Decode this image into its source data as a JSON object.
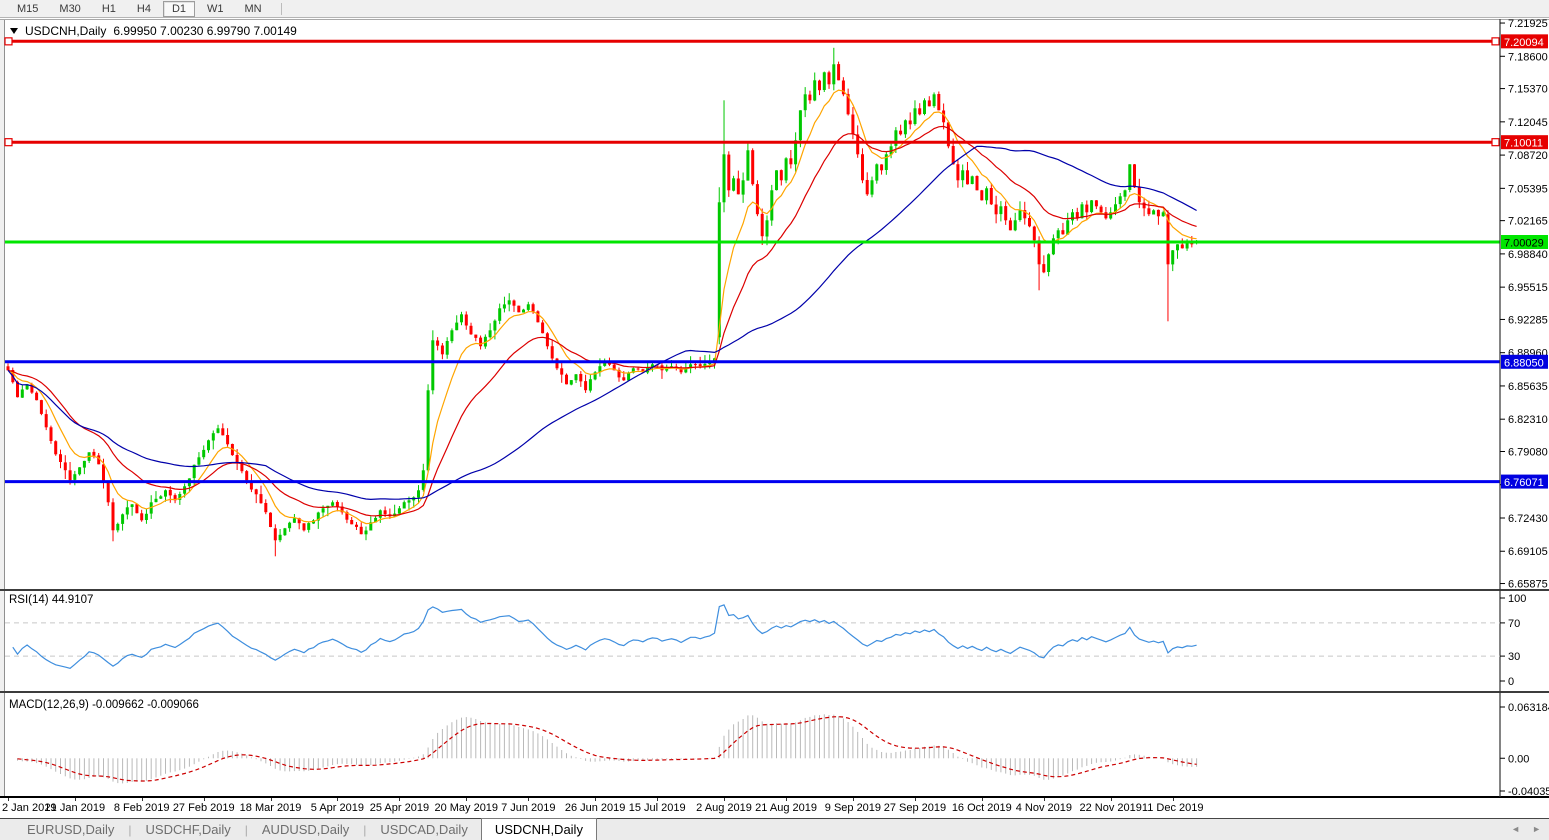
{
  "toolbar": {
    "timeframes": [
      {
        "label": "M15",
        "active": false
      },
      {
        "label": "M30",
        "active": false
      },
      {
        "label": "H1",
        "active": false
      },
      {
        "label": "H4",
        "active": false
      },
      {
        "label": "D1",
        "active": true
      },
      {
        "label": "W1",
        "active": false
      },
      {
        "label": "MN",
        "active": false
      }
    ]
  },
  "chart": {
    "title_symbol": "USDCNH,Daily",
    "title_ohlc": "6.99950 7.00230 6.99790 7.00149",
    "colors": {
      "bull": "#00C800",
      "bear": "#FF0000",
      "ma_fast": "#FFA500",
      "ma_mid": "#DC0000",
      "ma_slow": "#0000AA",
      "rsi_line": "#3E8EDE",
      "rsi_level": "#c8c8c8",
      "macd_hist": "#b9b9b9",
      "macd_signal": "#CC0000",
      "level_red": "#E60000",
      "level_green": "#00E600",
      "level_blue": "#0000F0",
      "border": "#3c3c3c",
      "axis_text": "#000000"
    },
    "price_axis_ticks": [
      "7.21925",
      "7.18600",
      "7.15370",
      "7.12045",
      "7.08720",
      "7.05395",
      "7.02165",
      "6.98840",
      "6.95515",
      "6.92285",
      "6.88960",
      "6.85635",
      "6.82310",
      "6.79080",
      "6.75755",
      "6.72430",
      "6.69105",
      "6.65875"
    ],
    "price_badges": [
      {
        "text": "7.20094",
        "price": 7.20094,
        "bg": "#E60000",
        "fg": "#FFFFFF"
      },
      {
        "text": "7.10011",
        "price": 7.10011,
        "bg": "#E60000",
        "fg": "#FFFFFF"
      },
      {
        "text": "7.00029",
        "price": 7.00029,
        "bg": "#00E600",
        "fg": "#000000"
      },
      {
        "text": "6.88050",
        "price": 6.8805,
        "bg": "#0000E0",
        "fg": "#FFFFFF"
      },
      {
        "text": "6.76071",
        "price": 6.76071,
        "bg": "#0000E0",
        "fg": "#FFFFFF"
      }
    ],
    "date_ticks": [
      {
        "label": "2 Jan 2019",
        "day": 0
      },
      {
        "label": "21 Jan 2019",
        "day": 14
      },
      {
        "label": "8 Feb 2019",
        "day": 28
      },
      {
        "label": "27 Feb 2019",
        "day": 41
      },
      {
        "label": "18 Mar 2019",
        "day": 55
      },
      {
        "label": "5 Apr 2019",
        "day": 69
      },
      {
        "label": "25 Apr 2019",
        "day": 82
      },
      {
        "label": "20 May 2019",
        "day": 96
      },
      {
        "label": "7 Jun 2019",
        "day": 109
      },
      {
        "label": "26 Jun 2019",
        "day": 123
      },
      {
        "label": "15 Jul 2019",
        "day": 136
      },
      {
        "label": "2 Aug 2019",
        "day": 150
      },
      {
        "label": "21 Aug 2019",
        "day": 163
      },
      {
        "label": "9 Sep 2019",
        "day": 177
      },
      {
        "label": "27 Sep 2019",
        "day": 190
      },
      {
        "label": "16 Oct 2019",
        "day": 204
      },
      {
        "label": "4 Nov 2019",
        "day": 217
      },
      {
        "label": "22 Nov 2019",
        "day": 231
      },
      {
        "label": "11 Dec 2019",
        "day": 244
      }
    ]
  },
  "indicators": {
    "rsi_label": "RSI(14) 44.9107",
    "macd_label": "MACD(12,26,9) -0.009662 -0.009066",
    "rsi_axis": [
      "100",
      "70",
      "30",
      "0"
    ],
    "macd_axis": [
      "0.063184",
      "0.00",
      "-0.040355"
    ]
  },
  "tabs": [
    {
      "label": "EURUSD,Daily",
      "active": false
    },
    {
      "label": "USDCHF,Daily",
      "active": false
    },
    {
      "label": "AUDUSD,Daily",
      "active": false
    },
    {
      "label": "USDCAD,Daily",
      "active": false
    },
    {
      "label": "USDCNH,Daily",
      "active": true
    }
  ],
  "nav": {
    "left_arrow": "◄",
    "right_arrow": "►"
  },
  "chart_data": {
    "type": "candlestick",
    "symbol": "USDCNH",
    "timeframe": "Daily",
    "last_ohlc": {
      "open": 6.9995,
      "high": 7.0023,
      "low": 6.9979,
      "close": 7.00149
    },
    "price_range_shown": [
      6.65875,
      7.21925
    ],
    "horizontal_levels": [
      {
        "price": 7.20094,
        "color": "#E60000",
        "width": 3,
        "handles": true
      },
      {
        "price": 7.10011,
        "color": "#E60000",
        "width": 3,
        "handles": true
      },
      {
        "price": 7.00029,
        "color": "#00E600",
        "width": 3,
        "handles": false
      },
      {
        "price": 6.8805,
        "color": "#0000F0",
        "width": 3,
        "handles": false
      },
      {
        "price": 6.76071,
        "color": "#0000F0",
        "width": 3,
        "handles": false
      }
    ],
    "moving_averages": [
      {
        "name": "fast",
        "type": "ema",
        "period": 8,
        "color": "#FFA500"
      },
      {
        "name": "mid",
        "type": "ema",
        "period": 21,
        "color": "#DC0000"
      },
      {
        "name": "slow",
        "type": "sma",
        "period": 55,
        "color": "#0000AA"
      }
    ],
    "rsi": {
      "period": 14,
      "current": 44.9107,
      "levels": [
        70,
        30
      ],
      "scale": [
        0,
        100
      ]
    },
    "macd": {
      "fast": 12,
      "slow": 26,
      "signal": 9,
      "current_main": -0.009662,
      "current_signal": -0.009066,
      "scale_max": 0.063184,
      "scale_min": -0.040355
    },
    "price_anchors": [
      [
        0,
        6.872
      ],
      [
        2,
        6.845
      ],
      [
        4,
        6.858
      ],
      [
        6,
        6.842
      ],
      [
        8,
        6.815
      ],
      [
        10,
        6.788
      ],
      [
        12,
        6.772
      ],
      [
        13,
        6.762
      ],
      [
        15,
        6.775
      ],
      [
        17,
        6.79
      ],
      [
        19,
        6.778
      ],
      [
        21,
        6.74
      ],
      [
        22,
        6.712
      ],
      [
        24,
        6.728
      ],
      [
        26,
        6.738
      ],
      [
        28,
        6.722
      ],
      [
        30,
        6.74
      ],
      [
        33,
        6.752
      ],
      [
        35,
        6.742
      ],
      [
        37,
        6.756
      ],
      [
        40,
        6.785
      ],
      [
        42,
        6.802
      ],
      [
        44,
        6.814
      ],
      [
        46,
        6.798
      ],
      [
        48,
        6.78
      ],
      [
        50,
        6.762
      ],
      [
        52,
        6.748
      ],
      [
        54,
        6.73
      ],
      [
        56,
        6.702
      ],
      [
        58,
        6.714
      ],
      [
        60,
        6.724
      ],
      [
        62,
        6.712
      ],
      [
        64,
        6.722
      ],
      [
        66,
        6.734
      ],
      [
        68,
        6.74
      ],
      [
        70,
        6.73
      ],
      [
        72,
        6.718
      ],
      [
        74,
        6.708
      ],
      [
        76,
        6.72
      ],
      [
        78,
        6.732
      ],
      [
        80,
        6.726
      ],
      [
        82,
        6.734
      ],
      [
        84,
        6.742
      ],
      [
        86,
        6.752
      ],
      [
        87,
        6.772
      ],
      [
        88,
        6.852
      ],
      [
        89,
        6.902
      ],
      [
        91,
        6.888
      ],
      [
        93,
        6.912
      ],
      [
        95,
        6.928
      ],
      [
        97,
        6.908
      ],
      [
        99,
        6.896
      ],
      [
        101,
        6.912
      ],
      [
        103,
        6.934
      ],
      [
        105,
        6.942
      ],
      [
        107,
        6.93
      ],
      [
        109,
        6.938
      ],
      [
        111,
        6.92
      ],
      [
        113,
        6.896
      ],
      [
        115,
        6.874
      ],
      [
        117,
        6.858
      ],
      [
        119,
        6.868
      ],
      [
        121,
        6.852
      ],
      [
        123,
        6.87
      ],
      [
        125,
        6.88
      ],
      [
        127,
        6.872
      ],
      [
        129,
        6.862
      ],
      [
        131,
        6.874
      ],
      [
        133,
        6.87
      ],
      [
        135,
        6.878
      ],
      [
        137,
        6.872
      ],
      [
        139,
        6.876
      ],
      [
        141,
        6.87
      ],
      [
        143,
        6.878
      ],
      [
        145,
        6.876
      ],
      [
        147,
        6.88
      ],
      [
        148,
        6.884
      ],
      [
        149,
        7.04
      ],
      [
        150,
        7.088
      ],
      [
        151,
        7.052
      ],
      [
        152,
        7.064
      ],
      [
        153,
        7.048
      ],
      [
        154,
        7.062
      ],
      [
        155,
        7.092
      ],
      [
        156,
        7.058
      ],
      [
        157,
        7.028
      ],
      [
        158,
        7.006
      ],
      [
        159,
        7.022
      ],
      [
        160,
        7.052
      ],
      [
        161,
        7.072
      ],
      [
        162,
        7.062
      ],
      [
        163,
        7.084
      ],
      [
        164,
        7.078
      ],
      [
        165,
        7.102
      ],
      [
        166,
        7.132
      ],
      [
        167,
        7.148
      ],
      [
        168,
        7.142
      ],
      [
        169,
        7.162
      ],
      [
        170,
        7.152
      ],
      [
        171,
        7.17
      ],
      [
        172,
        7.158
      ],
      [
        173,
        7.178
      ],
      [
        174,
        7.162
      ],
      [
        175,
        7.148
      ],
      [
        176,
        7.128
      ],
      [
        177,
        7.108
      ],
      [
        178,
        7.088
      ],
      [
        179,
        7.062
      ],
      [
        180,
        7.048
      ],
      [
        181,
        7.062
      ],
      [
        182,
        7.078
      ],
      [
        183,
        7.072
      ],
      [
        184,
        7.088
      ],
      [
        185,
        7.096
      ],
      [
        186,
        7.112
      ],
      [
        187,
        7.108
      ],
      [
        188,
        7.122
      ],
      [
        189,
        7.118
      ],
      [
        190,
        7.134
      ],
      [
        191,
        7.128
      ],
      [
        192,
        7.142
      ],
      [
        193,
        7.136
      ],
      [
        194,
        7.148
      ],
      [
        195,
        7.132
      ],
      [
        196,
        7.12
      ],
      [
        197,
        7.096
      ],
      [
        198,
        7.078
      ],
      [
        199,
        7.062
      ],
      [
        200,
        7.072
      ],
      [
        201,
        7.058
      ],
      [
        202,
        7.066
      ],
      [
        203,
        7.052
      ],
      [
        204,
        7.042
      ],
      [
        205,
        7.054
      ],
      [
        206,
        7.038
      ],
      [
        207,
        7.028
      ],
      [
        208,
        7.036
      ],
      [
        209,
        7.022
      ],
      [
        210,
        7.012
      ],
      [
        211,
        7.022
      ],
      [
        212,
        7.032
      ],
      [
        213,
        7.024
      ],
      [
        214,
        7.016
      ],
      [
        215,
        7.002
      ],
      [
        216,
        6.978
      ],
      [
        217,
        6.97
      ],
      [
        218,
        6.988
      ],
      [
        219,
        7.004
      ],
      [
        220,
        7.012
      ],
      [
        221,
        7.008
      ],
      [
        222,
        7.022
      ],
      [
        223,
        7.03
      ],
      [
        224,
        7.024
      ],
      [
        225,
        7.038
      ],
      [
        226,
        7.03
      ],
      [
        227,
        7.042
      ],
      [
        228,
        7.036
      ],
      [
        229,
        7.03
      ],
      [
        230,
        7.024
      ],
      [
        231,
        7.03
      ],
      [
        232,
        7.038
      ],
      [
        233,
        7.046
      ],
      [
        234,
        7.052
      ],
      [
        235,
        7.078
      ],
      [
        236,
        7.055
      ],
      [
        237,
        7.04
      ],
      [
        238,
        7.034
      ],
      [
        239,
        7.028
      ],
      [
        240,
        7.032
      ],
      [
        241,
        7.026
      ],
      [
        242,
        7.03
      ],
      [
        243,
        6.978
      ],
      [
        244,
        6.992
      ],
      [
        245,
        6.998
      ],
      [
        246,
        6.994
      ],
      [
        247,
        7.0
      ],
      [
        248,
        6.998
      ],
      [
        249,
        7.00149
      ]
    ],
    "special_candles": {
      "22": [
        6.74,
        6.744,
        6.701,
        6.712
      ],
      "56": [
        6.714,
        6.718,
        6.686,
        6.702
      ],
      "88": [
        6.772,
        6.858,
        6.77,
        6.852
      ],
      "89": [
        6.852,
        6.912,
        6.848,
        6.902
      ],
      "149": [
        6.905,
        7.055,
        6.898,
        7.04
      ],
      "150": [
        7.04,
        7.142,
        7.03,
        7.088
      ],
      "173": [
        7.158,
        7.1945,
        7.152,
        7.178
      ],
      "216": [
        7.002,
        7.006,
        6.952,
        6.978
      ],
      "243": [
        7.028,
        7.032,
        6.921,
        6.978
      ],
      "249": [
        6.9995,
        7.0023,
        6.9979,
        7.00149
      ]
    }
  }
}
